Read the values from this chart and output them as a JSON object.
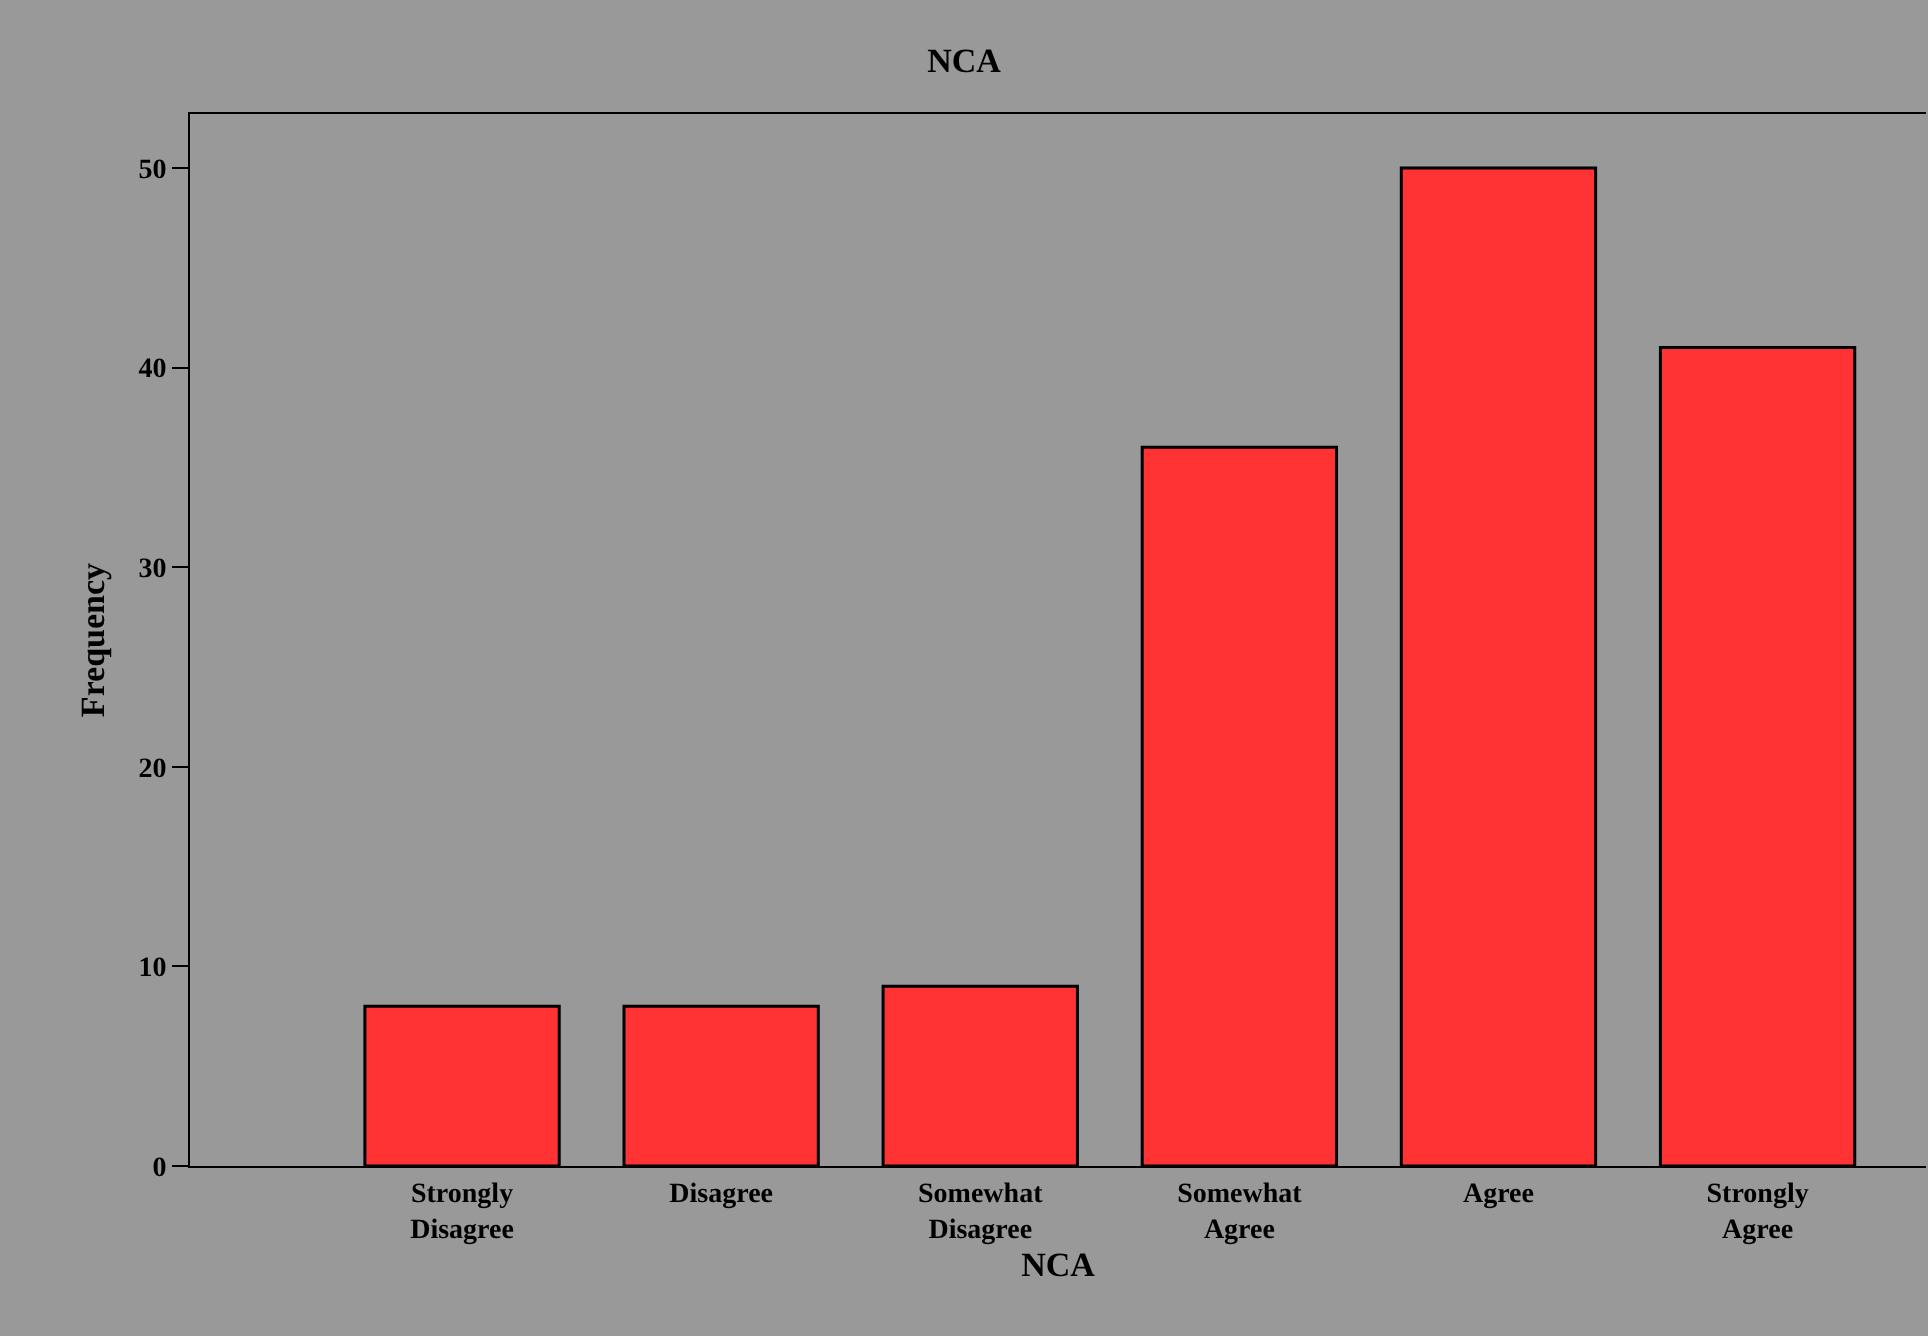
{
  "chart_data": {
    "type": "bar",
    "title": "NCA",
    "xlabel": "NCA",
    "ylabel": "Frequency",
    "categories": [
      "Strongly\nDisagree",
      "Disagree",
      "Somewhat\nDisagree",
      "Somewhat\nAgree",
      "Agree",
      "Strongly\nAgree"
    ],
    "values": [
      8,
      8,
      9,
      36,
      50,
      41
    ],
    "color": "#ff3333",
    "ylim": [
      0,
      52.7
    ],
    "yticks": [
      0,
      10,
      20,
      30,
      40,
      50
    ],
    "grid": false
  }
}
